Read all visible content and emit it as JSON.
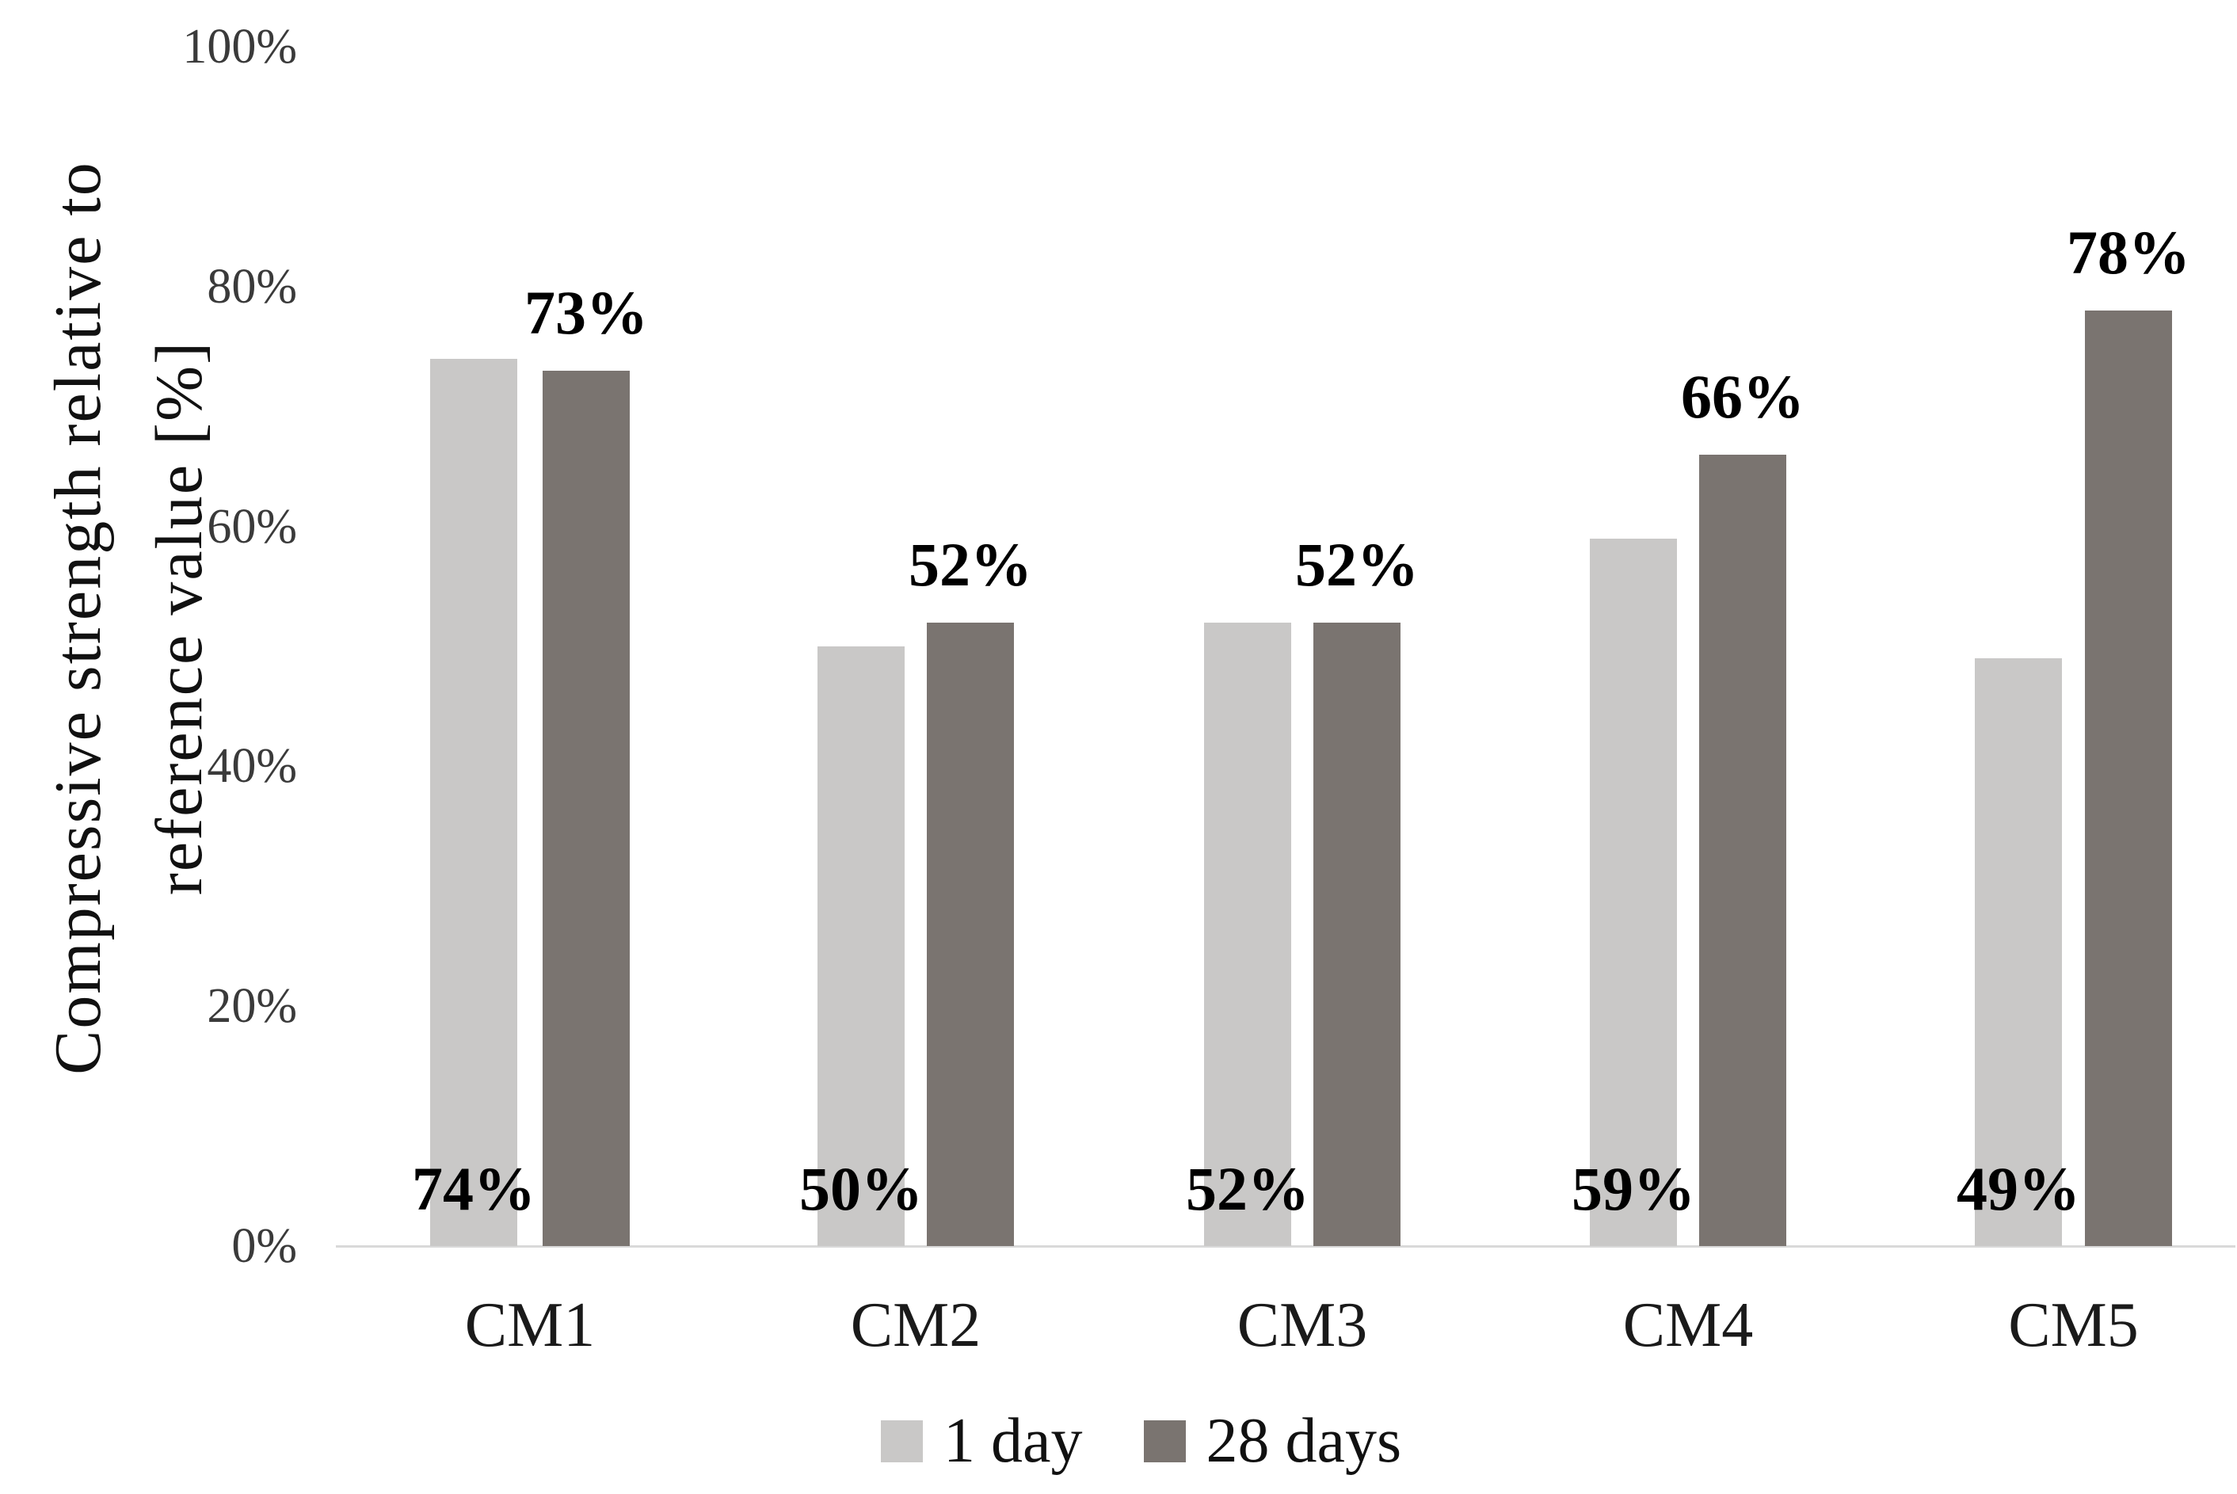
{
  "chart_data": {
    "type": "bar",
    "title": "",
    "categories": [
      "CM1",
      "CM2",
      "CM3",
      "CM4",
      "CM5"
    ],
    "series": [
      {
        "name": "1 day",
        "color": "#c9c8c7",
        "values": [
          74,
          50,
          52,
          59,
          49
        ],
        "data_labels": [
          "74%",
          "50%",
          "52%",
          "59%",
          "49%"
        ],
        "label_position": "inside-base"
      },
      {
        "name": "28 days",
        "color": "#7a7470",
        "values": [
          73,
          52,
          52,
          66,
          78
        ],
        "data_labels": [
          "73%",
          "52%",
          "52%",
          "66%",
          "78%"
        ],
        "label_position": "outside-end"
      }
    ],
    "ylabel": "Compressive strength relative to reference value [%]",
    "ylabel_lines": [
      "Compressive strength relative to",
      "reference value [%]"
    ],
    "ytick_values": [
      0,
      20,
      40,
      60,
      80,
      100
    ],
    "ytick_labels": [
      "0%",
      "20%",
      "40%",
      "60%",
      "80%",
      "100%"
    ],
    "ylim": [
      0,
      100
    ],
    "grid": false,
    "legend_position": "bottom"
  },
  "colors": {
    "background": "#ffffff",
    "axis_line": "#d9d9d9",
    "tick_text": "#3a3a3a",
    "category_text": "#1a1a1a",
    "data_label_text": "#000000"
  }
}
